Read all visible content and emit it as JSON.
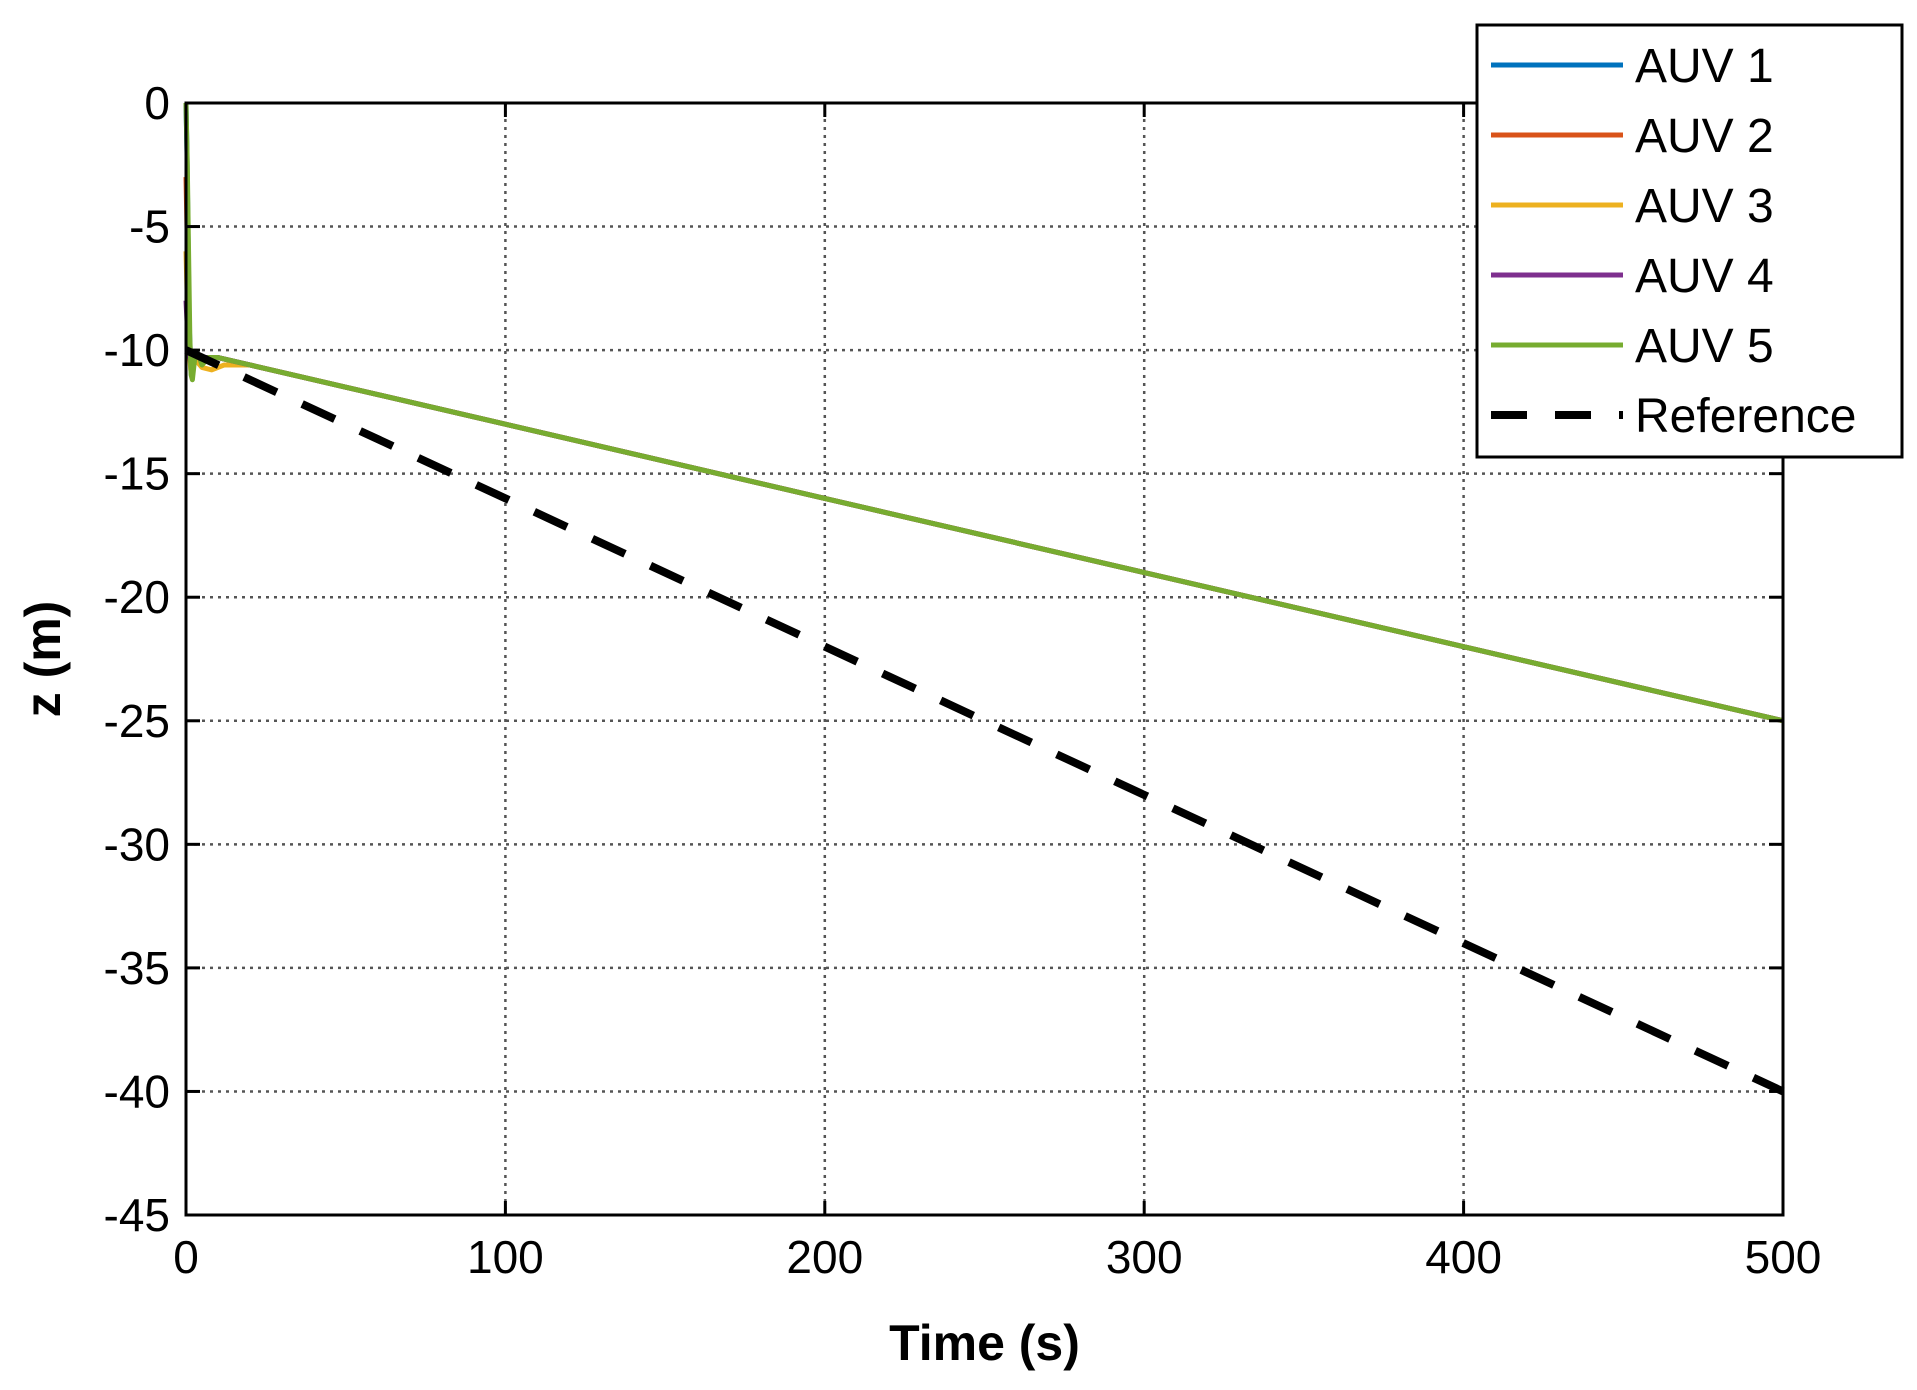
{
  "chart_data": {
    "type": "line",
    "title": "",
    "xlabel": "Time (s)",
    "ylabel": "z (m)",
    "xlim": [
      0,
      500
    ],
    "ylim": [
      -45,
      0
    ],
    "x_ticks": [
      0,
      100,
      200,
      300,
      400,
      500
    ],
    "y_ticks": [
      0,
      -5,
      -10,
      -15,
      -20,
      -25,
      -30,
      -35,
      -40,
      -45
    ],
    "x_tick_labels": [
      "0",
      "100",
      "200",
      "300",
      "400",
      "500"
    ],
    "y_tick_labels": [
      "0",
      "-5",
      "-10",
      "-15",
      "-20",
      "-25",
      "-30",
      "-35",
      "-40",
      "-45"
    ],
    "grid": true,
    "grid_style": "dotted",
    "legend_position": "top-right",
    "series": [
      {
        "name": "AUV 1",
        "color": "#0072BD",
        "style": "solid",
        "x": [
          0,
          0.3,
          0.6,
          1,
          1.5,
          2,
          3,
          4,
          6,
          10,
          20,
          50,
          100,
          200,
          300,
          400,
          500
        ],
        "y": [
          0,
          -2,
          -5,
          -9,
          -10.6,
          -10.4,
          -10.1,
          -10.2,
          -10.3,
          -10.3,
          -10.6,
          -11.5,
          -13.0,
          -16.0,
          -19.0,
          -22.0,
          -25.0
        ]
      },
      {
        "name": "AUV 2",
        "color": "#D95319",
        "style": "solid",
        "x": [
          0,
          0.3,
          0.6,
          1,
          1.5,
          2,
          3,
          4,
          6,
          10,
          20,
          50,
          100,
          200,
          300,
          400,
          500
        ],
        "y": [
          -3,
          -5,
          -7,
          -9.5,
          -10.3,
          -10.5,
          -10.2,
          -10.2,
          -10.3,
          -10.3,
          -10.6,
          -11.5,
          -13.0,
          -16.0,
          -19.0,
          -22.0,
          -25.0
        ]
      },
      {
        "name": "AUV 3",
        "color": "#EDB120",
        "style": "solid",
        "x": [
          0,
          0.3,
          0.6,
          1,
          1.5,
          2,
          3,
          5,
          8,
          12,
          20,
          50,
          100,
          200,
          300,
          400,
          500
        ],
        "y": [
          -6,
          -7.5,
          -9,
          -10,
          -10.8,
          -10.6,
          -10.4,
          -10.7,
          -10.8,
          -10.6,
          -10.6,
          -11.5,
          -13.0,
          -16.0,
          -19.0,
          -22.0,
          -25.0
        ]
      },
      {
        "name": "AUV 4",
        "color": "#7E2F8E",
        "style": "solid",
        "x": [
          0,
          0.3,
          0.6,
          1,
          1.5,
          2,
          3,
          4,
          6,
          10,
          20,
          50,
          100,
          200,
          300,
          400,
          500
        ],
        "y": [
          -8,
          -8.8,
          -9.5,
          -10.1,
          -10.5,
          -10.4,
          -10.2,
          -10.2,
          -10.3,
          -10.3,
          -10.6,
          -11.5,
          -13.0,
          -16.0,
          -19.0,
          -22.0,
          -25.0
        ]
      },
      {
        "name": "AUV 5",
        "color": "#77AC30",
        "style": "solid",
        "x": [
          0,
          0.4,
          0.8,
          1.2,
          1.6,
          2,
          2.5,
          3,
          4,
          5,
          7,
          10,
          20,
          50,
          100,
          200,
          300,
          400,
          500
        ],
        "y": [
          0,
          -2.5,
          -6,
          -9.5,
          -11,
          -11.2,
          -10.6,
          -10.1,
          -10.2,
          -10.6,
          -10.3,
          -10.3,
          -10.6,
          -11.5,
          -13.0,
          -16.0,
          -19.0,
          -22.0,
          -25.0
        ]
      },
      {
        "name": "Reference",
        "color": "#000000",
        "style": "dashed",
        "x": [
          0,
          500
        ],
        "y": [
          -10,
          -40
        ]
      }
    ]
  }
}
